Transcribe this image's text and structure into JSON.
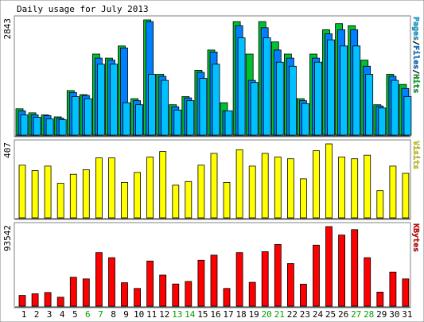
{
  "chart_data": {
    "title": "Daily usage for July 2013",
    "colors": {
      "hits": "#00c030",
      "files": "#0080ff",
      "pages": "#00c0ff",
      "visits": "#ffff00",
      "kbytes": "#ff0000",
      "weekday": "#000000",
      "weekend": "#00a000"
    },
    "days": [
      "1",
      "2",
      "3",
      "4",
      "5",
      "6",
      "7",
      "8",
      "9",
      "10",
      "11",
      "12",
      "13",
      "14",
      "15",
      "16",
      "17",
      "18",
      "19",
      "20",
      "21",
      "22",
      "23",
      "24",
      "25",
      "26",
      "27",
      "28",
      "29",
      "30",
      "31"
    ],
    "weekend_days": [
      "6",
      "7",
      "13",
      "14",
      "20",
      "21",
      "27",
      "28"
    ],
    "panels": [
      {
        "id": "hits-files-pages",
        "type": "bar",
        "max_label": "2843",
        "legend": [
          {
            "text": "Pages",
            "color": "#00c0ff"
          },
          {
            "text": "/",
            "color": "#000000"
          },
          {
            "text": "Files",
            "color": "#0080ff"
          },
          {
            "text": "/",
            "color": "#000000"
          },
          {
            "text": "Hits",
            "color": "#00c030"
          }
        ],
        "series": [
          {
            "name": "Hits",
            "color": "#00c030",
            "values": [
              650,
              550,
              500,
              450,
              1100,
              1000,
              2000,
              1900,
              2200,
              900,
              2843,
              1500,
              750,
              950,
              1600,
              2100,
              800,
              2800,
              2000,
              2800,
              2300,
              2000,
              900,
              2000,
              2600,
              2750,
              2700,
              1850,
              750,
              1500,
              1250
            ]
          },
          {
            "name": "Files",
            "color": "#0080ff",
            "values": [
              600,
              500,
              480,
              420,
              1050,
              980,
              1900,
              1850,
              2150,
              850,
              2800,
              1450,
              700,
              920,
              1550,
              2050,
              600,
              2700,
              1350,
              2650,
              2100,
              1900,
              850,
              1900,
              2500,
              2600,
              2600,
              1700,
              720,
              1450,
              1150
            ]
          },
          {
            "name": "Pages",
            "color": "#00c0ff",
            "values": [
              500,
              440,
              400,
              380,
              950,
              900,
              1750,
              1750,
              800,
              750,
              1500,
              1350,
              620,
              850,
              1400,
              1750,
              600,
              2400,
              1300,
              2400,
              1800,
              1700,
              780,
              1800,
              2350,
              2200,
              2200,
              1500,
              670,
              1350,
              950
            ]
          }
        ]
      },
      {
        "id": "visits",
        "type": "bar",
        "max_label": "407",
        "legend": [
          {
            "text": "Visits",
            "color": "#ffff00"
          }
        ],
        "series": [
          {
            "name": "Visits",
            "color": "#ffff00",
            "values": [
              290,
              260,
              285,
              190,
              240,
              265,
              330,
              330,
              195,
              250,
              335,
              365,
              180,
              200,
              290,
              355,
              195,
              375,
              285,
              355,
              335,
              325,
              215,
              370,
              407,
              335,
              325,
              345,
              150,
              285,
              245
            ]
          }
        ]
      },
      {
        "id": "kbytes",
        "type": "bar",
        "max_label": "93542",
        "legend": [
          {
            "text": "KBytes",
            "color": "#ff0000"
          }
        ],
        "series": [
          {
            "name": "KBytes",
            "color": "#ff0000",
            "values": [
              12500,
              14500,
              16000,
              10500,
              34000,
              32000,
              63000,
              57000,
              27500,
              20800,
              53000,
              36500,
              26000,
              29000,
              54000,
              60000,
              20800,
              63000,
              28000,
              64000,
              72500,
              50000,
              25800,
              71700,
              93542,
              83600,
              90000,
              57000,
              16500,
              40000,
              32000
            ]
          }
        ]
      }
    ]
  }
}
